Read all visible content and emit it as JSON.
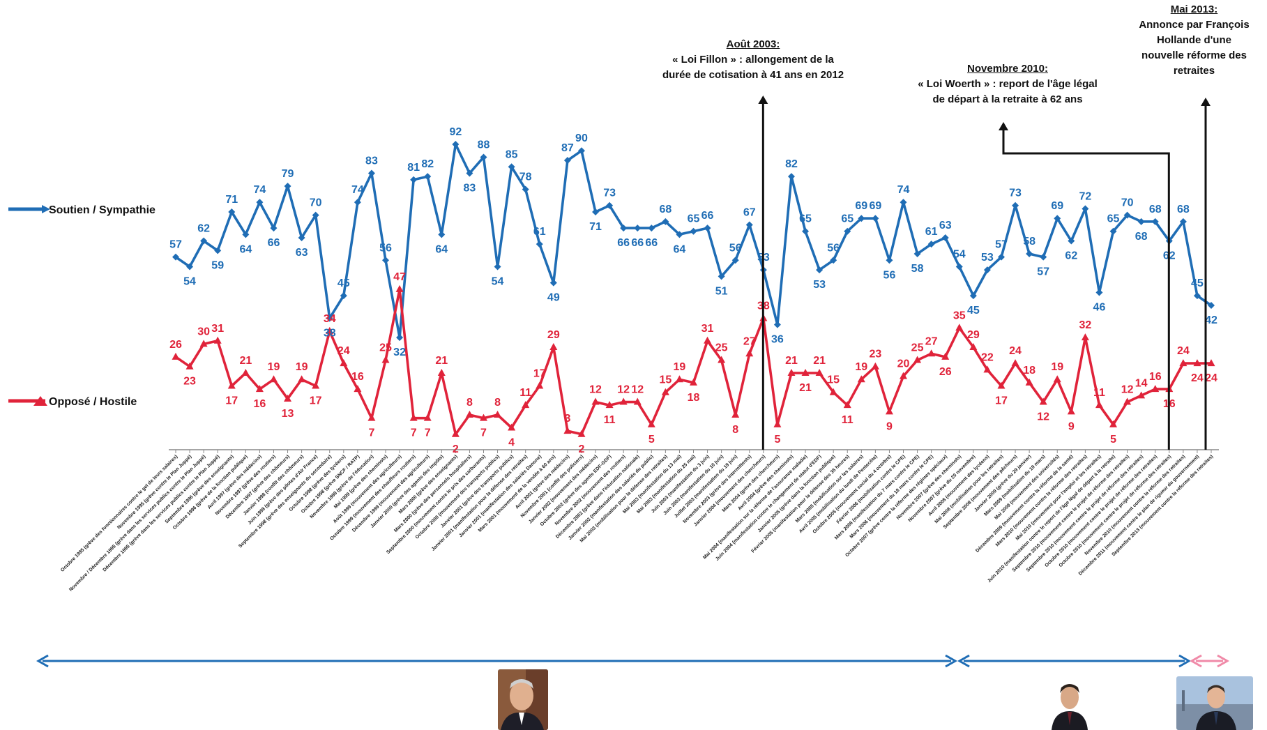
{
  "chart_data": {
    "type": "line",
    "series": [
      {
        "name": "Soutien / Sympathie",
        "color": "#1f6db5",
        "values": [
          57,
          54,
          62,
          59,
          71,
          64,
          74,
          66,
          79,
          63,
          70,
          38,
          45,
          74,
          83,
          56,
          32,
          81,
          82,
          64,
          92,
          83,
          88,
          54,
          85,
          78,
          61,
          49,
          87,
          90,
          71,
          73,
          66,
          66,
          66,
          68,
          64,
          65,
          66,
          51,
          56,
          67,
          53,
          36,
          82,
          65,
          53,
          56,
          65,
          69,
          69,
          56,
          74,
          58,
          61,
          63,
          54,
          45,
          53,
          57,
          73,
          58,
          57,
          69,
          62,
          72,
          46,
          65,
          70,
          68,
          68,
          62,
          68,
          45,
          42
        ]
      },
      {
        "name": "Opposé / Hostile",
        "color": "#e0233a",
        "values": [
          26,
          23,
          30,
          31,
          17,
          21,
          16,
          19,
          13,
          19,
          17,
          34,
          24,
          16,
          7,
          25,
          47,
          7,
          7,
          21,
          2,
          8,
          7,
          8,
          4,
          11,
          17,
          29,
          3,
          2,
          12,
          11,
          12,
          12,
          5,
          15,
          19,
          18,
          31,
          25,
          8,
          27,
          38,
          5,
          21,
          21,
          21,
          15,
          11,
          19,
          23,
          9,
          20,
          25,
          27,
          26,
          35,
          29,
          22,
          17,
          24,
          18,
          12,
          19,
          9,
          32,
          11,
          5,
          12,
          14,
          16,
          16,
          24,
          24,
          24
        ]
      }
    ],
    "visible_labels": {
      "soutien": [
        "57",
        "54",
        "62",
        "59",
        "71",
        "64",
        "74",
        "66",
        "79",
        "63",
        "70",
        "38",
        "45",
        "74",
        "83",
        "56",
        "32",
        "81",
        "82",
        "64",
        "92",
        "83",
        "88",
        "54",
        "85",
        "78",
        "61",
        "49",
        "87",
        "90",
        "71",
        "73",
        "66",
        "66",
        "66",
        "68",
        "64",
        "65",
        "66",
        "51",
        "56",
        "67",
        "53",
        "36",
        "82",
        "65",
        "53",
        "56",
        "65",
        "69",
        "69",
        "56",
        "74",
        "58",
        "61",
        "63",
        "54",
        "45",
        "53",
        "57",
        "73",
        "58",
        "57",
        "69",
        "62",
        "72",
        "46",
        "65",
        "70",
        "68",
        "68",
        "62",
        "68",
        "45",
        "42"
      ],
      "oppose": [
        "26",
        "23",
        "30",
        "31",
        "17",
        "21",
        "16",
        "19",
        "13",
        "19",
        "17",
        "34",
        "24",
        "16",
        "7",
        "25",
        "47",
        "7",
        "7",
        "21",
        "2",
        "8",
        "7",
        "8",
        "4",
        "11",
        "17",
        "29",
        "3",
        "2",
        "12",
        "11",
        "12",
        "12",
        "5",
        "15",
        "19",
        "18",
        "31",
        "25",
        "8",
        "27",
        "38",
        "5",
        "21",
        "21",
        "21",
        "15",
        "11",
        "19",
        "23",
        "9",
        "20",
        "25",
        "27",
        "26",
        "35",
        "29",
        "22",
        "17",
        "24",
        "18",
        "12",
        "19",
        "9",
        "32",
        "11",
        "5",
        "12",
        "14",
        "16",
        "16",
        "24",
        "24",
        "24"
      ]
    },
    "legend": [
      "Soutien / Sympathie",
      "Opposé / Hostile"
    ],
    "categories": [
      "Octobre 1995 (grève des fonctionnaires contre le gel de leurs salaires)",
      "Novembre 1995 (grève contre le Plan Juppé)",
      "Novembre / Décembre 1995 (grève dans les services publics contre le Plan Juppé)",
      "Décembre 1995 (grève dans les services publics contre le Plan Juppé)",
      "Septembre 1996 (grève des enseignants)",
      "Octobre 1996 (grève de la fonction publique)",
      "Avril 1997 (grève des médecins)",
      "Novembre 1997 (grève des routiers)",
      "Décembre 1997 (grève des chômeurs)",
      "Janvier 1998 (conflit des chômeurs)",
      "Juin 1998 (grève des pilotes d'Air France)",
      "Septembre 1998 (grève des enseignants du secondaire)",
      "Octobre 1998 (grève des lycéens)",
      "Octobre 1998 (grève SNCF / RATP)",
      "Novembre 1998 (grève de l'éducation)",
      "Mai 1999 (grève des cheminots)",
      "Août 1999 (mouvement des agriculteurs)",
      "Octobre 1999 (mouvement des chauffeurs routiers)",
      "Décembre 1999 (mouvement des agriculteurs)",
      "Janvier 2000 (grève des agents des impôts)",
      "Mars 2000 (grève des enseignants)",
      "Mars 2000 (grève des personnels hospitaliers)",
      "Septembre 2000 (mouvement contre le prix des carburants)",
      "Octobre 2000 (mouvement des transports publics)",
      "Janvier 2001 (grève des transports publics)",
      "Janvier 2001 (manifestation pour la défense des retraites)",
      "Janvier 2001 (manifestation des salariés Danone)",
      "Mars 2001 (mouvement de la vendée à 60 ans)",
      "Avril 2001 (grève des médecins)",
      "Novembre 2001 (conflit des policiers)",
      "Janvier 2002 (mouvement des médecins)",
      "Octobre 2002 (grève des agents EDF-GDF)",
      "Novembre 2002 (mouvement des routiers)",
      "Décembre 2002 (grève dans l'éducation nationale)",
      "Janvier 2003 (manifestation des salariés du public)",
      "Mai 2003 (mobilisation pour la défense des retraites)",
      "Mai 2003 (manifestation du 13 mai)",
      "Mai 2003 (manifestation du 25 mai)",
      "Juin 2003 (manifestation du 3 juin)",
      "Juin 2003 (manifestation du 10 juin)",
      "Juillet 2003 (manifestation du 19 juin)",
      "Novembre 2003 (grève des intermittents)",
      "Janvier 2004 (mouvement des chercheurs)",
      "Mars 2004 (grève des chercheurs)",
      "Avril 2004 (grève des cheminots)",
      "Mai 2004 (manifestation sur la réforme de l'assurance maladie)",
      "Juin 2004 (manifestation contre le changement de statut d'EDF)",
      "Janvier 2005 (grève dans la fonction publique)",
      "Février 2005 (manifestation pour la défense des 35 heures)",
      "Mars 2005 (mobilisation sur les salaires)",
      "Avril 2005 (mobilisation du lundi de Pentecôte)",
      "Octobre 2005 (mouvement social du 4 octobre)",
      "Février 2006 (mobilisation contre le CPE)",
      "Mars 2006 (manifestation du 7 mars contre le CPE)",
      "Mars 2006 (mouvement du 18 mars contre le CPE)",
      "Octobre 2007 (grève contre la réforme des régimes spéciaux)",
      "Novembre 2007 (grève des cheminots)",
      "Novembre 2007 (grève du 20 novembre)",
      "Avril 2008 (mouvement des lycéens)",
      "Mai 2008 (mobilisation pour les retraites)",
      "Septembre 2008 (mouvement des pêcheurs)",
      "Janvier 2009 (grève du 29 janvier)",
      "Mars 2009 (mobilisation du 19 mars)",
      "Mai 2009 (mouvement des universités)",
      "Décembre 2009 (mouvement contre la réforme de la santé)",
      "Mars 2010 (mouvement contre la réforme des retraites)",
      "Mai 2010 (mouvement pour l'emploi et les retraites)",
      "Juin 2010 (manifestation contre le report de l'âge légal de départ à la retraite)",
      "Septembre 2010 (mouvement contre le projet de réforme des retraites)",
      "Septembre 2010 (mouvement contre le projet de réforme des retraites)",
      "Octobre 2010 (mouvement contre le projet de réforme des retraites)",
      "Octobre 2010 (mouvement contre le projet de réforme des retraites)",
      "Novembre 2010 (mouvement contre la réforme des retraites)",
      "Décembre 2011 (mouvement contre le plan de rigueur du gouvernement)",
      "Septembre 2013 (mouvement contre la réforme des retraites)"
    ],
    "annotations": [
      {
        "heading": "Août 2003:",
        "lines": [
          "« Loi Fillon » : allongement de la",
          "durée de cotisation à 41 ans en 2012"
        ],
        "index": 42
      },
      {
        "heading": "Novembre 2010:",
        "lines": [
          "« Loi Woerth » : report de l'âge légal",
          "de départ à la retraite à 62 ans"
        ],
        "index": 71
      },
      {
        "heading": "Mai 2013:",
        "lines": [
          "Annonce par François",
          "Hollande d'une",
          "nouvelle réforme des",
          "retraites"
        ],
        "index": 74
      }
    ],
    "periods": [
      {
        "color": "#1f6db5",
        "from": 0,
        "to": 56,
        "portrait": "chirac-portrait"
      },
      {
        "color": "#1f6db5",
        "from": 56,
        "to": 73,
        "portrait": "sarkozy-portrait"
      },
      {
        "color": "#f08aa8",
        "from": 73,
        "to": 75,
        "portrait": "hollande-portrait"
      }
    ]
  }
}
